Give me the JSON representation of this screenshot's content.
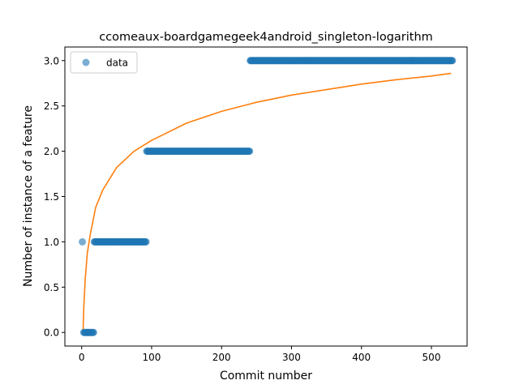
{
  "chart_data": {
    "type": "scatter",
    "title": "ccomeaux-boardgamegeek4android_singleton-logarithm",
    "xlabel": "Commit number",
    "ylabel": "Number of instance of a feature",
    "xlim": [
      -24,
      551
    ],
    "ylim": [
      -0.15,
      3.15
    ],
    "xticks": [
      0,
      100,
      200,
      300,
      400,
      500
    ],
    "yticks": [
      0.0,
      0.5,
      1.0,
      1.5,
      2.0,
      2.5,
      3.0
    ],
    "xtick_labels": [
      "0",
      "100",
      "200",
      "300",
      "400",
      "500"
    ],
    "ytick_labels": [
      "0.0",
      "0.5",
      "1.0",
      "1.5",
      "2.0",
      "2.5",
      "3.0"
    ],
    "grid": false,
    "legend": {
      "position": "top-left",
      "entries": [
        "data"
      ]
    },
    "series": [
      {
        "name": "data",
        "kind": "points",
        "color": "#1f77b4",
        "segments": [
          {
            "y": 1,
            "x_start": 1,
            "x_end": 1
          },
          {
            "y": 0,
            "x_start": 3,
            "x_end": 17
          },
          {
            "y": 1,
            "x_start": 18,
            "x_end": 92
          },
          {
            "y": 2,
            "x_start": 93,
            "x_end": 240
          },
          {
            "y": 3,
            "x_start": 241,
            "x_end": 530
          }
        ]
      },
      {
        "kind": "fit-line",
        "color": "#ff7f0e",
        "model": "logarithmic",
        "x_range": [
          2,
          528
        ],
        "points": [
          [
            2,
            0.0
          ],
          [
            3,
            0.27
          ],
          [
            5,
            0.58
          ],
          [
            8,
            0.87
          ],
          [
            12,
            1.07
          ],
          [
            20,
            1.38
          ],
          [
            30,
            1.57
          ],
          [
            50,
            1.82
          ],
          [
            75,
            2.0
          ],
          [
            100,
            2.12
          ],
          [
            150,
            2.31
          ],
          [
            200,
            2.44
          ],
          [
            250,
            2.54
          ],
          [
            300,
            2.62
          ],
          [
            350,
            2.68
          ],
          [
            400,
            2.74
          ],
          [
            450,
            2.79
          ],
          [
            500,
            2.83
          ],
          [
            528,
            2.86
          ]
        ]
      }
    ]
  }
}
